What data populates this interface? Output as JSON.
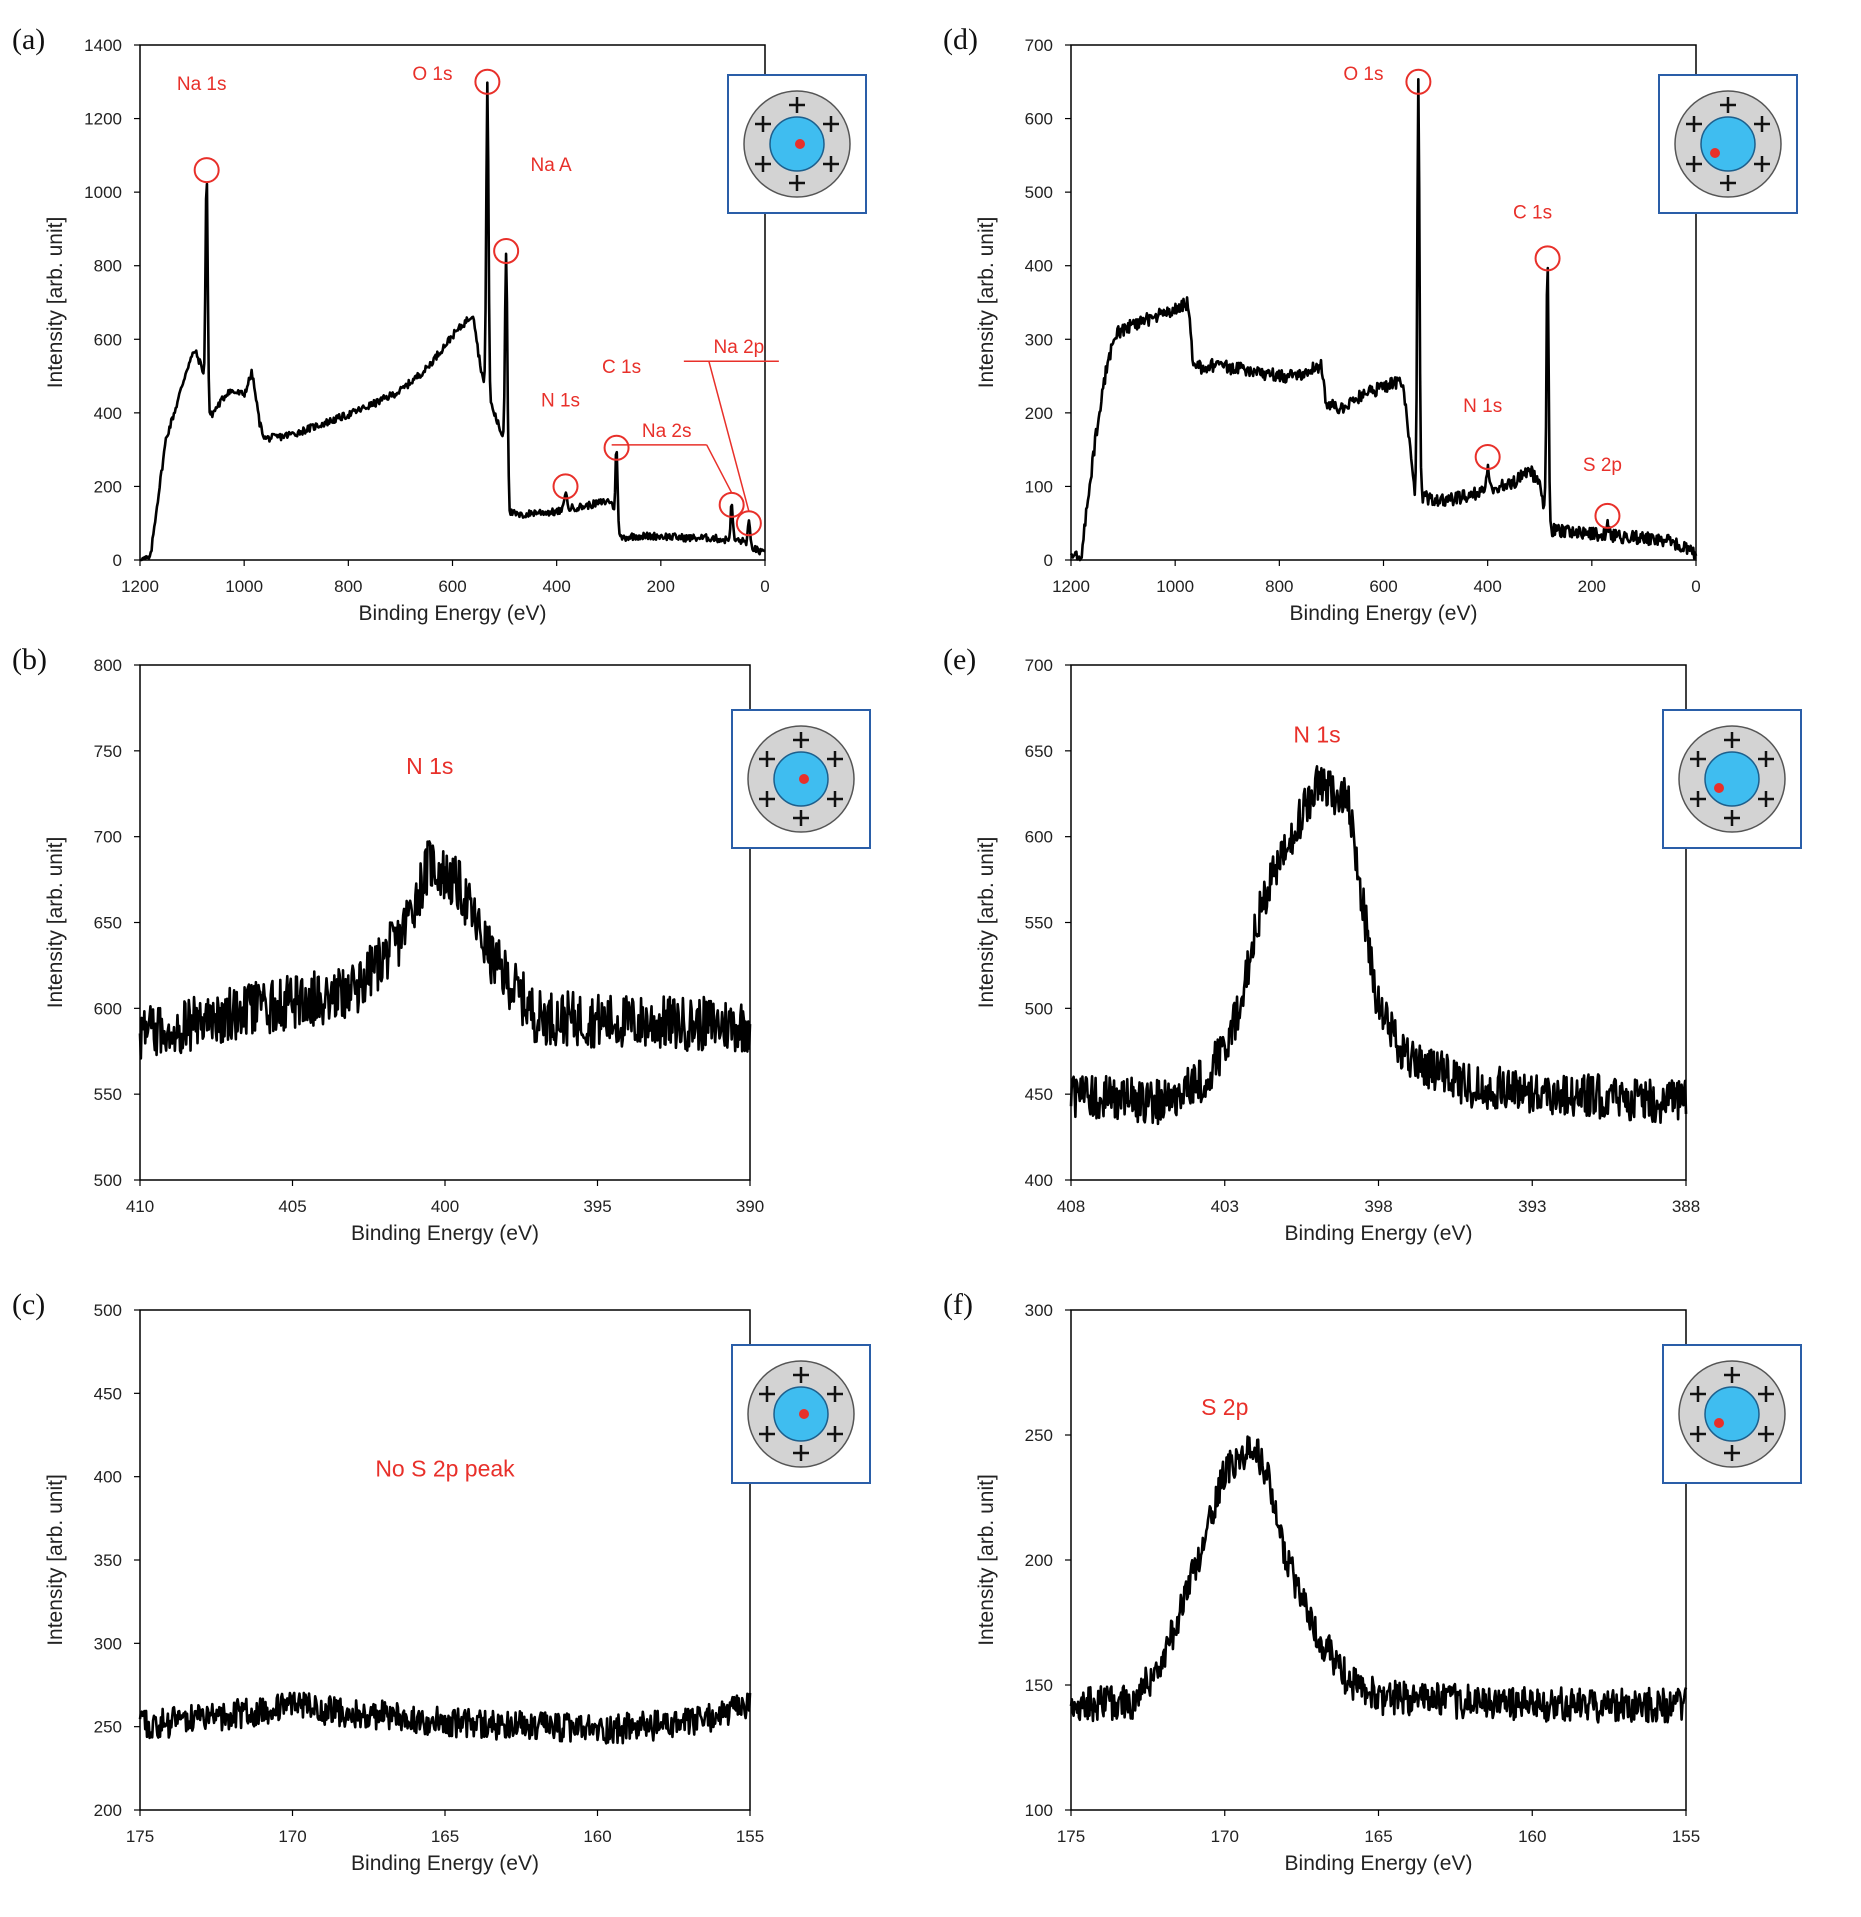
{
  "figure": {
    "accent_color": "#e8302a",
    "line_color": "#000000",
    "inset_particle_colors": {
      "shell": "#d3d3d3",
      "core": "#3fbdf0",
      "dot": "#e8302a",
      "frame": "#2a5ea8"
    }
  },
  "chart_data": [
    {
      "id": "a",
      "panel_label": "(a)",
      "type": "line",
      "xlabel": "Binding Energy (eV)",
      "ylabel": "Intensity [arb. unit]",
      "xlim": [
        1200,
        0
      ],
      "ylim": [
        0,
        1400
      ],
      "xticks": [
        "1200",
        "1000",
        "800",
        "600",
        "400",
        "200",
        "0"
      ],
      "yticks": [
        "0",
        "200",
        "400",
        "600",
        "800",
        "1000",
        "1200",
        "1400"
      ],
      "inset_dot": "center",
      "baseline": [
        [
          1200,
          0
        ],
        [
          1180,
          5
        ],
        [
          1170,
          120
        ],
        [
          1150,
          330
        ],
        [
          1130,
          420
        ],
        [
          1110,
          520
        ],
        [
          1095,
          570
        ],
        [
          1080,
          520
        ],
        [
          1070,
          380
        ],
        [
          1050,
          420
        ],
        [
          1030,
          460
        ],
        [
          1000,
          450
        ],
        [
          985,
          510
        ],
        [
          970,
          370
        ],
        [
          960,
          330
        ],
        [
          930,
          335
        ],
        [
          900,
          345
        ],
        [
          860,
          365
        ],
        [
          800,
          395
        ],
        [
          750,
          425
        ],
        [
          700,
          460
        ],
        [
          650,
          520
        ],
        [
          600,
          610
        ],
        [
          560,
          670
        ],
        [
          550,
          560
        ],
        [
          540,
          480
        ],
        [
          520,
          400
        ],
        [
          505,
          340
        ],
        [
          495,
          300
        ],
        [
          490,
          130
        ],
        [
          470,
          120
        ],
        [
          440,
          130
        ],
        [
          400,
          130
        ],
        [
          380,
          140
        ],
        [
          350,
          145
        ],
        [
          320,
          155
        ],
        [
          300,
          160
        ],
        [
          295,
          160
        ],
        [
          280,
          60
        ],
        [
          250,
          65
        ],
        [
          200,
          65
        ],
        [
          150,
          60
        ],
        [
          100,
          60
        ],
        [
          80,
          55
        ],
        [
          60,
          55
        ],
        [
          40,
          50
        ],
        [
          20,
          30
        ],
        [
          0,
          15
        ]
      ],
      "peaks": [
        [
          1072,
          1060
        ],
        [
          533,
          1300
        ],
        [
          497,
          840
        ],
        [
          383,
          190
        ],
        [
          285,
          305
        ],
        [
          64,
          150
        ],
        [
          31,
          100
        ]
      ],
      "noise": 10,
      "annotations": [
        {
          "text": "Na 1s",
          "x": 1072,
          "y": 1060,
          "dx": -5,
          "dy": -80
        },
        {
          "text": "O 1s",
          "x": 533,
          "y": 1300,
          "dx": -55,
          "dy": -2
        },
        {
          "text": "Na A",
          "x": 497,
          "y": 840,
          "dx": 45,
          "dy": -80
        },
        {
          "text": "N 1s",
          "x": 383,
          "y": 200,
          "dx": -5,
          "dy": -80
        },
        {
          "text": "C 1s",
          "x": 285,
          "y": 305,
          "dx": 5,
          "dy": -75
        },
        {
          "text": "Na 2s",
          "x": 64,
          "y": 150,
          "dx": -65,
          "dy": -68
        },
        {
          "text": "Na 2p",
          "x": 31,
          "y": 100,
          "dx": -10,
          "dy": -170
        }
      ]
    },
    {
      "id": "b",
      "panel_label": "(b)",
      "type": "line",
      "xlabel": "Binding Energy (eV)",
      "ylabel": "Intensity [arb. unit]",
      "xlim": [
        410,
        390
      ],
      "ylim": [
        500,
        800
      ],
      "xticks": [
        "410",
        "405",
        "400",
        "395",
        "390"
      ],
      "yticks": [
        "500",
        "550",
        "600",
        "650",
        "700",
        "750",
        "800"
      ],
      "inset_dot": "center",
      "baseline": [
        [
          410,
          585
        ],
        [
          406,
          600
        ],
        [
          403,
          610
        ],
        [
          401.5,
          640
        ],
        [
          400.5,
          685
        ],
        [
          399.5,
          670
        ],
        [
          398.5,
          630
        ],
        [
          397,
          595
        ],
        [
          394,
          592
        ],
        [
          390,
          590
        ]
      ],
      "peaks": [],
      "noise": 16,
      "annotations": [
        {
          "text": "N 1s",
          "x": 400.5,
          "y": 725,
          "dx": 0,
          "dy": -20
        }
      ]
    },
    {
      "id": "c",
      "panel_label": "(c)",
      "type": "line",
      "xlabel": "Binding Energy (eV)",
      "ylabel": "Intensity [arb. unit]",
      "xlim": [
        175,
        155
      ],
      "ylim": [
        200,
        500
      ],
      "xticks": [
        "175",
        "170",
        "165",
        "160",
        "155"
      ],
      "yticks": [
        "200",
        "250",
        "300",
        "350",
        "400",
        "450",
        "500"
      ],
      "inset_dot": "center",
      "baseline": [
        [
          175,
          250
        ],
        [
          170,
          262
        ],
        [
          165,
          253
        ],
        [
          160,
          248
        ],
        [
          157,
          252
        ],
        [
          155,
          262
        ]
      ],
      "peaks": [],
      "noise": 9,
      "annotations": [
        {
          "text": "No S 2p peak",
          "x": 165,
          "y": 400,
          "dx": 0,
          "dy": 0
        }
      ]
    },
    {
      "id": "d",
      "panel_label": "(d)",
      "type": "line",
      "xlabel": "Binding Energy (eV)",
      "ylabel": "Intensity [arb. unit]",
      "xlim": [
        1200,
        0
      ],
      "ylim": [
        0,
        700
      ],
      "xticks": [
        "1200",
        "1000",
        "800",
        "600",
        "400",
        "200",
        "0"
      ],
      "yticks": [
        "0",
        "100",
        "200",
        "300",
        "400",
        "500",
        "600",
        "700"
      ],
      "inset_dot": "offset",
      "baseline": [
        [
          1200,
          0
        ],
        [
          1180,
          5
        ],
        [
          1170,
          70
        ],
        [
          1150,
          180
        ],
        [
          1130,
          270
        ],
        [
          1110,
          310
        ],
        [
          1080,
          320
        ],
        [
          1040,
          330
        ],
        [
          1000,
          340
        ],
        [
          975,
          350
        ],
        [
          965,
          260
        ],
        [
          930,
          265
        ],
        [
          880,
          260
        ],
        [
          800,
          250
        ],
        [
          760,
          250
        ],
        [
          720,
          265
        ],
        [
          710,
          215
        ],
        [
          680,
          205
        ],
        [
          640,
          225
        ],
        [
          600,
          235
        ],
        [
          565,
          245
        ],
        [
          555,
          200
        ],
        [
          548,
          140
        ],
        [
          540,
          90
        ],
        [
          500,
          80
        ],
        [
          450,
          85
        ],
        [
          400,
          95
        ],
        [
          350,
          105
        ],
        [
          320,
          125
        ],
        [
          300,
          100
        ],
        [
          295,
          85
        ],
        [
          285,
          40
        ],
        [
          250,
          40
        ],
        [
          200,
          35
        ],
        [
          150,
          32
        ],
        [
          100,
          30
        ],
        [
          50,
          25
        ],
        [
          20,
          15
        ],
        [
          0,
          8
        ]
      ],
      "peaks": [
        [
          533,
          650
        ],
        [
          400,
          130
        ],
        [
          285,
          410
        ],
        [
          170,
          55
        ]
      ],
      "noise": 9,
      "annotations": [
        {
          "text": "O 1s",
          "x": 533,
          "y": 650,
          "dx": -55,
          "dy": -2
        },
        {
          "text": "N 1s",
          "x": 400,
          "y": 140,
          "dx": -5,
          "dy": -45
        },
        {
          "text": "C 1s",
          "x": 285,
          "y": 410,
          "dx": -15,
          "dy": -40
        },
        {
          "text": "S 2p",
          "x": 170,
          "y": 60,
          "dx": -5,
          "dy": -45
        }
      ]
    },
    {
      "id": "e",
      "panel_label": "(e)",
      "type": "line",
      "xlabel": "Binding Energy (eV)",
      "ylabel": "Intensity [arb. unit]",
      "xlim": [
        408,
        388
      ],
      "ylim": [
        400,
        700
      ],
      "xticks": [
        "408",
        "403",
        "398",
        "393",
        "388"
      ],
      "yticks": [
        "400",
        "450",
        "500",
        "550",
        "600",
        "650",
        "700"
      ],
      "inset_dot": "offset",
      "baseline": [
        [
          408,
          450
        ],
        [
          405,
          445
        ],
        [
          403.5,
          460
        ],
        [
          402.5,
          500
        ],
        [
          402,
          550
        ],
        [
          401,
          595
        ],
        [
          400,
          630
        ],
        [
          399,
          620
        ],
        [
          398.5,
          560
        ],
        [
          398,
          500
        ],
        [
          397,
          470
        ],
        [
          395,
          455
        ],
        [
          392,
          450
        ],
        [
          390,
          448
        ],
        [
          388,
          445
        ]
      ],
      "peaks": [],
      "noise": 13,
      "annotations": [
        {
          "text": "N 1s",
          "x": 400,
          "y": 655,
          "dx": 0,
          "dy": 0
        }
      ]
    },
    {
      "id": "f",
      "panel_label": "(f)",
      "type": "line",
      "xlabel": "Binding Energy (eV)",
      "ylabel": "Intensity [arb. unit]",
      "xlim": [
        175,
        155
      ],
      "ylim": [
        100,
        300
      ],
      "xticks": [
        "175",
        "170",
        "165",
        "160",
        "155"
      ],
      "yticks": [
        "100",
        "150",
        "200",
        "250",
        "300"
      ],
      "inset_dot": "offset",
      "baseline": [
        [
          175,
          142
        ],
        [
          173,
          143
        ],
        [
          172,
          160
        ],
        [
          171,
          195
        ],
        [
          170,
          235
        ],
        [
          169,
          245
        ],
        [
          168.5,
          230
        ],
        [
          168,
          200
        ],
        [
          167,
          170
        ],
        [
          166,
          152
        ],
        [
          165,
          145
        ],
        [
          160,
          142
        ],
        [
          155,
          142
        ]
      ],
      "peaks": [],
      "noise": 7,
      "annotations": [
        {
          "text": "S 2p",
          "x": 170,
          "y": 258,
          "dx": 0,
          "dy": 0
        }
      ]
    }
  ]
}
